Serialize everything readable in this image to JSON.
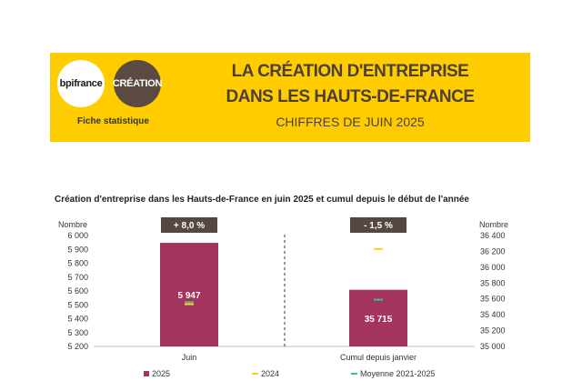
{
  "header": {
    "logo_left": "bpifrance",
    "logo_right": "CRÉATION",
    "fiche": "Fiche statistique",
    "title_line1": "LA CRÉATION D'ENTREPRISE",
    "title_line2": "DANS LES HAUTS-DE-FRANCE",
    "subtitle": "CHIFFRES DE JUIN 2025",
    "colors": {
      "banner": "#ffcc00",
      "title": "#4b3f37"
    }
  },
  "chart_data": {
    "type": "bar",
    "title": "Création d'entreprise dans les Hauts-de-France  en juin 2025 et cumul depuis le début de l'année",
    "ylabel_left": "Nombre",
    "ylabel_right": "Nombre",
    "ylim_left": [
      5200,
      6000
    ],
    "ylim_right": [
      35000,
      36400
    ],
    "yticks_left": [
      "5 200",
      "5 300",
      "5 400",
      "5 500",
      "5 600",
      "5 700",
      "5 800",
      "5 900",
      "6 000"
    ],
    "yticks_right": [
      "35 000",
      "35 200",
      "35 400",
      "35 600",
      "35 800",
      "36 000",
      "36 200",
      "36 400"
    ],
    "categories": [
      "Juin",
      "Cumul depuis janvier"
    ],
    "series": [
      {
        "name": "2025",
        "type": "bar",
        "color": "#a3345e",
        "values": [
          5947,
          35715
        ],
        "labels": [
          "5 947",
          "35 715"
        ]
      },
      {
        "name": "2024",
        "type": "marker",
        "color": "#ffd21a",
        "values": [
          5505,
          36230
        ]
      },
      {
        "name": "Moyenne 2021-2025",
        "type": "marker",
        "color": "#3fb8a8",
        "values": [
          5520,
          35590
        ]
      }
    ],
    "badges": [
      "+ 8,0 %",
      "- 1,5 %"
    ],
    "legend_position": "bottom",
    "grid": false
  }
}
